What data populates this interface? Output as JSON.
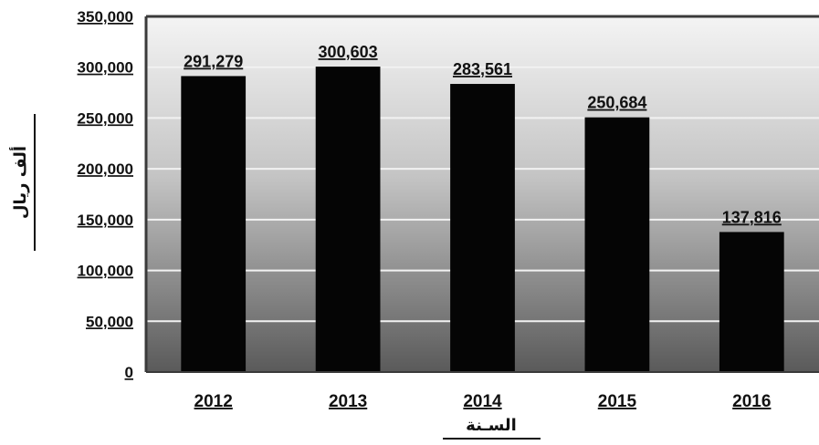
{
  "chart_data": {
    "type": "bar",
    "categories": [
      "2012",
      "2013",
      "2014",
      "2015",
      "2016"
    ],
    "values": [
      291279,
      300603,
      283561,
      250684,
      137816
    ],
    "value_labels": [
      "291,279",
      "300,603",
      "283,561",
      "250,684",
      "137,816"
    ],
    "xlabel": "السـنة",
    "ylabel": "ألف ريال",
    "ylim": [
      0,
      350000
    ],
    "yticks": [
      0,
      50000,
      100000,
      150000,
      200000,
      250000,
      300000,
      350000
    ],
    "ytick_labels": [
      "0",
      "50,000",
      "100,000",
      "150,000",
      "200,000",
      "250,000",
      "300,000",
      "350,000"
    ],
    "grid": true,
    "colors": {
      "bar": "#050505",
      "plot_bg_top": "#f4f4f4",
      "plot_bg_bottom": "#5a5a5a",
      "gridline": "#f2f2f2",
      "frame": "#3a3a3a"
    }
  }
}
